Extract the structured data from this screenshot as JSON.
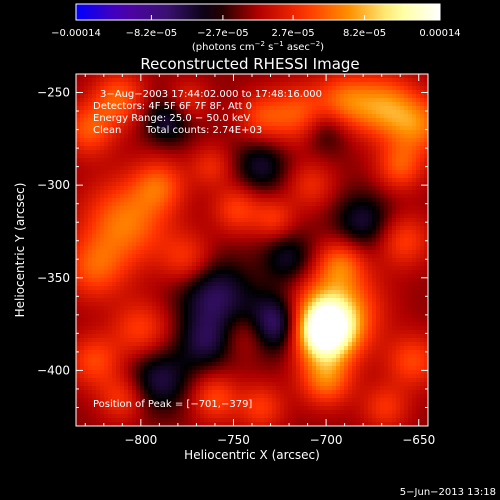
{
  "chart_data": {
    "type": "heatmap",
    "title": "Reconstructed RHESSI Image",
    "xlabel": "Heliocentric X (arcsec)",
    "ylabel": "Heliocentric Y (arcsec)",
    "xlim": [
      -835,
      -645
    ],
    "ylim": [
      -430,
      -240
    ],
    "x_ticks": [
      -800,
      -750,
      -700,
      -650
    ],
    "y_ticks": [
      -250,
      -300,
      -350,
      -400
    ],
    "x_tick_labels": [
      "−800",
      "−750",
      "−700",
      "−650"
    ],
    "y_tick_labels": [
      "−250",
      "−300",
      "−350",
      "−400"
    ],
    "colorbar": {
      "range": [
        -0.00014,
        0.00014
      ],
      "tick_values": [
        -0.00014,
        -8.2e-05,
        -2.7e-05,
        2.7e-05,
        8.2e-05,
        0.00014
      ],
      "tick_labels": [
        "−0.00014",
        "−8.2e−05",
        "−2.7e−05",
        "2.7e−05",
        "8.2e−05",
        "0.00014"
      ],
      "unit": {
        "prefix": "(photons cm",
        "sup1": "−2",
        "mid1": " s",
        "sup2": "−1",
        "mid2": " asec",
        "sup3": "−2",
        "suffix": ")"
      }
    },
    "annotations": {
      "time_range": "3−Aug−2003 17:44:02.000 to 17:48:16.000",
      "detectors": "Detectors: 4F 5F 6F 7F 8F, Att 0",
      "energy_range": "Energy Range: 25.0 − 50.0 keV",
      "algorithm": "Clean",
      "total_counts": "Total counts: 2.74E+03",
      "peak": "Position of Peak = [−701,−379]"
    },
    "peak": [
      -701,
      -379
    ],
    "sources": [
      {
        "x": -701,
        "y": -379,
        "sigma": 11,
        "amp": 1.0
      },
      {
        "x": -695,
        "y": -368,
        "sigma": 16,
        "amp": 0.6
      },
      {
        "x": -700,
        "y": -405,
        "sigma": 10,
        "amp": 0.45
      },
      {
        "x": -692,
        "y": -342,
        "sigma": 9,
        "amp": 0.35
      },
      {
        "x": -668,
        "y": -258,
        "sigma": 12,
        "amp": 0.5
      },
      {
        "x": -650,
        "y": -268,
        "sigma": 11,
        "amp": 0.42
      },
      {
        "x": -660,
        "y": -290,
        "sigma": 9,
        "amp": 0.36
      },
      {
        "x": -690,
        "y": -255,
        "sigma": 11,
        "amp": 0.42
      },
      {
        "x": -715,
        "y": -262,
        "sigma": 11,
        "amp": 0.38
      },
      {
        "x": -735,
        "y": -263,
        "sigma": 9,
        "amp": 0.3
      },
      {
        "x": -812,
        "y": -253,
        "sigma": 10,
        "amp": 0.4
      },
      {
        "x": -828,
        "y": -270,
        "sigma": 10,
        "amp": 0.38
      },
      {
        "x": -808,
        "y": -320,
        "sigma": 16,
        "amp": 0.48
      },
      {
        "x": -790,
        "y": -300,
        "sigma": 10,
        "amp": 0.35
      },
      {
        "x": -825,
        "y": -345,
        "sigma": 12,
        "amp": 0.36
      },
      {
        "x": -775,
        "y": -340,
        "sigma": 10,
        "amp": 0.3
      },
      {
        "x": -825,
        "y": -395,
        "sigma": 10,
        "amp": 0.34
      },
      {
        "x": -800,
        "y": -378,
        "sigma": 11,
        "amp": 0.32
      },
      {
        "x": -810,
        "y": -415,
        "sigma": 9,
        "amp": 0.3
      },
      {
        "x": -760,
        "y": -415,
        "sigma": 9,
        "amp": 0.34
      },
      {
        "x": -735,
        "y": -420,
        "sigma": 9,
        "amp": 0.3
      },
      {
        "x": -748,
        "y": -313,
        "sigma": 9,
        "amp": 0.32
      },
      {
        "x": -728,
        "y": -318,
        "sigma": 8,
        "amp": 0.28
      },
      {
        "x": -762,
        "y": -290,
        "sigma": 8,
        "amp": 0.24
      },
      {
        "x": -708,
        "y": -300,
        "sigma": 9,
        "amp": 0.24
      },
      {
        "x": -658,
        "y": -330,
        "sigma": 10,
        "amp": 0.32
      },
      {
        "x": -653,
        "y": -395,
        "sigma": 10,
        "amp": 0.34
      },
      {
        "x": -668,
        "y": -420,
        "sigma": 9,
        "amp": 0.28
      },
      {
        "x": -742,
        "y": -380,
        "sigma": 9,
        "amp": 0.22
      },
      {
        "x": -775,
        "y": -255,
        "sigma": 8,
        "amp": 0.26
      }
    ],
    "negative_sources": [
      {
        "x": -727,
        "y": -375,
        "sigma": 11,
        "amp": 0.55
      },
      {
        "x": -760,
        "y": -360,
        "sigma": 14,
        "amp": 0.4
      },
      {
        "x": -790,
        "y": -405,
        "sigma": 12,
        "amp": 0.35
      },
      {
        "x": -785,
        "y": -265,
        "sigma": 9,
        "amp": 0.35
      },
      {
        "x": -735,
        "y": -290,
        "sigma": 10,
        "amp": 0.3
      },
      {
        "x": -680,
        "y": -320,
        "sigma": 11,
        "amp": 0.32
      },
      {
        "x": -720,
        "y": -340,
        "sigma": 10,
        "amp": 0.3
      },
      {
        "x": -765,
        "y": -385,
        "sigma": 10,
        "amp": 0.3
      },
      {
        "x": -700,
        "y": -270,
        "sigma": 9,
        "amp": 0.25
      }
    ],
    "colors": {
      "background": "#000000",
      "foreground": "#ffffff",
      "colormap": [
        "#0000ff",
        "#5000b0",
        "#3a1070",
        "#000000",
        "#b00000",
        "#ff3000",
        "#ff9000",
        "#ffff90",
        "#ffffff"
      ]
    }
  },
  "footer": {
    "timestamp": "5−Jun−2013 13:18"
  }
}
